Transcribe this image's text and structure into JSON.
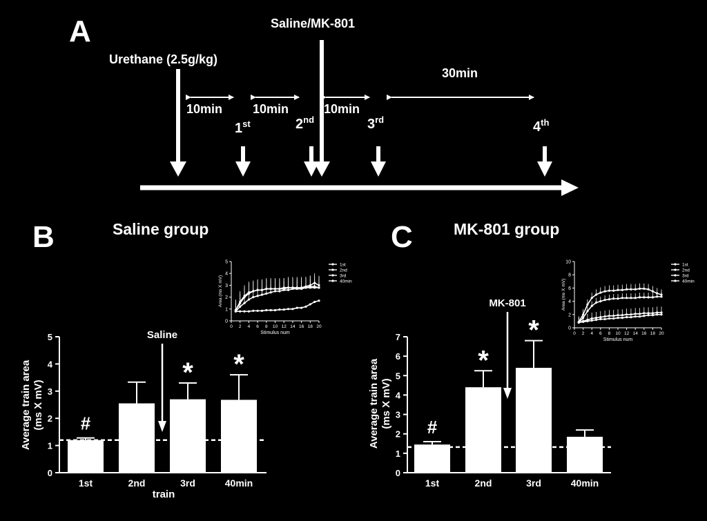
{
  "panelA": {
    "letter": "A",
    "urethane_label": "Urethane (2.5g/kg)",
    "drug_label": "Saline/MK-801",
    "interval_10min": "10min",
    "interval_30min": "30min",
    "train_labels": [
      {
        "num": "1",
        "sup": "st"
      },
      {
        "num": "2",
        "sup": "nd"
      },
      {
        "num": "3",
        "sup": "rd"
      },
      {
        "num": "4",
        "sup": "th"
      }
    ]
  },
  "chart_data": [
    {
      "panel_letter": "B",
      "type": "bar",
      "title": "Saline group",
      "ylabel_line1": "Average train area",
      "ylabel_line2": "(ms X mV)",
      "xlabel": "train",
      "categories": [
        "1st",
        "2nd",
        "3rd",
        "40min"
      ],
      "values": [
        1.2,
        2.55,
        2.7,
        2.68
      ],
      "errors": [
        0.08,
        0.78,
        0.6,
        0.92
      ],
      "ylim": [
        0,
        5
      ],
      "yticks": [
        "0",
        "1",
        "2",
        "3",
        "4",
        "5"
      ],
      "baseline": 1.2,
      "markers": [
        "#",
        "",
        "*",
        "*"
      ],
      "arrow_label": "Saline",
      "inset": {
        "type": "line",
        "ylabel": "Area (ms X mV)",
        "xlabel": "Stimulus num",
        "ylim": [
          0,
          5
        ],
        "yticks": [
          "0",
          "1",
          "2",
          "3",
          "4",
          "5"
        ],
        "xticks": [
          "0",
          "2",
          "4",
          "6",
          "8",
          "10",
          "12",
          "14",
          "16",
          "18",
          "20"
        ],
        "series": [
          {
            "name": "1st",
            "values": [
              0.8,
              0.8,
              0.8,
              0.8,
              0.85,
              0.85,
              0.85,
              0.9,
              0.9,
              0.9,
              0.95,
              0.95,
              1.0,
              1.0,
              1.1,
              1.1,
              1.2,
              1.4,
              1.6,
              1.7
            ]
          },
          {
            "name": "2nd",
            "values": [
              0.8,
              1.2,
              1.5,
              1.8,
              2.0,
              2.1,
              2.2,
              2.3,
              2.4,
              2.5,
              2.5,
              2.6,
              2.6,
              2.7,
              2.7,
              2.7,
              2.8,
              2.8,
              2.8,
              2.8
            ]
          },
          {
            "name": "3rd",
            "values": [
              0.9,
              1.5,
              2.0,
              2.3,
              2.5,
              2.6,
              2.6,
              2.7,
              2.7,
              2.7,
              2.7,
              2.8,
              2.8,
              2.8,
              2.8,
              2.8,
              2.9,
              3.0,
              3.2,
              3.0
            ]
          },
          {
            "name": "40min",
            "values": [
              0.9,
              1.6,
              2.1,
              2.4,
              2.5,
              2.6,
              2.6,
              2.7,
              2.7,
              2.7,
              2.7,
              2.7,
              2.8,
              2.8,
              2.8,
              2.8,
              2.8,
              2.9,
              2.9,
              2.8
            ]
          }
        ]
      }
    },
    {
      "panel_letter": "C",
      "type": "bar",
      "title": "MK-801 group",
      "ylabel_line1": "Average train area",
      "ylabel_line2": "(ms X mV)",
      "xlabel": "",
      "categories": [
        "1st",
        "2nd",
        "3rd",
        "40min"
      ],
      "values": [
        1.45,
        4.4,
        5.4,
        1.85
      ],
      "errors": [
        0.15,
        0.85,
        1.4,
        0.35
      ],
      "ylim": [
        0,
        7
      ],
      "yticks": [
        "0",
        "1",
        "2",
        "3",
        "4",
        "5",
        "6",
        "7"
      ],
      "baseline": 1.32,
      "markers": [
        "#",
        "*",
        "*",
        ""
      ],
      "arrow_label": "MK-801",
      "inset": {
        "type": "line",
        "ylabel": "Area (ms X mV)",
        "xlabel": "Stimulus num",
        "ylim": [
          0,
          10
        ],
        "yticks": [
          "0",
          "2",
          "4",
          "6",
          "8",
          "10"
        ],
        "xticks": [
          "0",
          "2",
          "4",
          "6",
          "8",
          "10",
          "12",
          "14",
          "16",
          "18",
          "20"
        ],
        "series": [
          {
            "name": "1st",
            "values": [
              0.8,
              0.9,
              1.0,
              1.1,
              1.2,
              1.3,
              1.3,
              1.4,
              1.4,
              1.5,
              1.5,
              1.6,
              1.6,
              1.7,
              1.7,
              1.8,
              1.9,
              1.9,
              2.0,
              2.0
            ]
          },
          {
            "name": "2nd",
            "values": [
              0.8,
              1.5,
              2.5,
              3.3,
              3.8,
              4.0,
              4.2,
              4.3,
              4.4,
              4.4,
              4.5,
              4.5,
              4.5,
              4.5,
              4.6,
              4.6,
              4.6,
              4.6,
              4.7,
              4.7
            ]
          },
          {
            "name": "3rd",
            "values": [
              0.9,
              2.0,
              3.5,
              4.5,
              5.0,
              5.3,
              5.5,
              5.6,
              5.6,
              5.7,
              5.7,
              5.8,
              5.8,
              5.8,
              5.9,
              5.9,
              5.8,
              5.5,
              5.2,
              5.0
            ]
          },
          {
            "name": "40min",
            "values": [
              0.8,
              1.0,
              1.2,
              1.4,
              1.5,
              1.6,
              1.7,
              1.8,
              1.8,
              1.9,
              1.9,
              2.0,
              2.0,
              2.1,
              2.1,
              2.2,
              2.2,
              2.2,
              2.3,
              2.3
            ]
          }
        ]
      }
    }
  ]
}
